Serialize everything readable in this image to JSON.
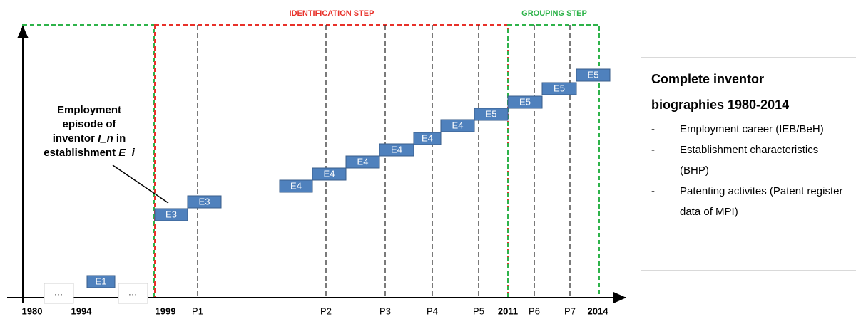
{
  "phases": {
    "identification": "IDENTIFICATION STEP",
    "grouping": "GROUPING STEP"
  },
  "axis_labels": [
    "1980",
    "1994",
    "1999",
    "P1",
    "P2",
    "P3",
    "P4",
    "P5",
    "2011",
    "P6",
    "P7",
    "2014"
  ],
  "ellipsis": [
    "…",
    "…"
  ],
  "episodes": [
    "E1",
    "E3",
    "E3",
    "E4",
    "E4",
    "E4",
    "E4",
    "E4",
    "E4",
    "E5",
    "E5",
    "E5",
    "E5"
  ],
  "annotation": {
    "lines": [
      [
        "Employment"
      ],
      [
        "episode of"
      ],
      [
        "inventor ",
        "I_n",
        " in"
      ],
      [
        "establishment ",
        "E_i"
      ]
    ]
  },
  "info_box": {
    "title": "Complete inventor biographies 1980-2014",
    "items": [
      {
        "marker": "-",
        "text": "Employment career (IEB/BeH)"
      },
      {
        "marker": "-",
        "text": "Establishment characteristics (BHP)"
      },
      {
        "marker": "-",
        "text": "Patenting activites (Patent register data of MPI)"
      }
    ]
  }
}
